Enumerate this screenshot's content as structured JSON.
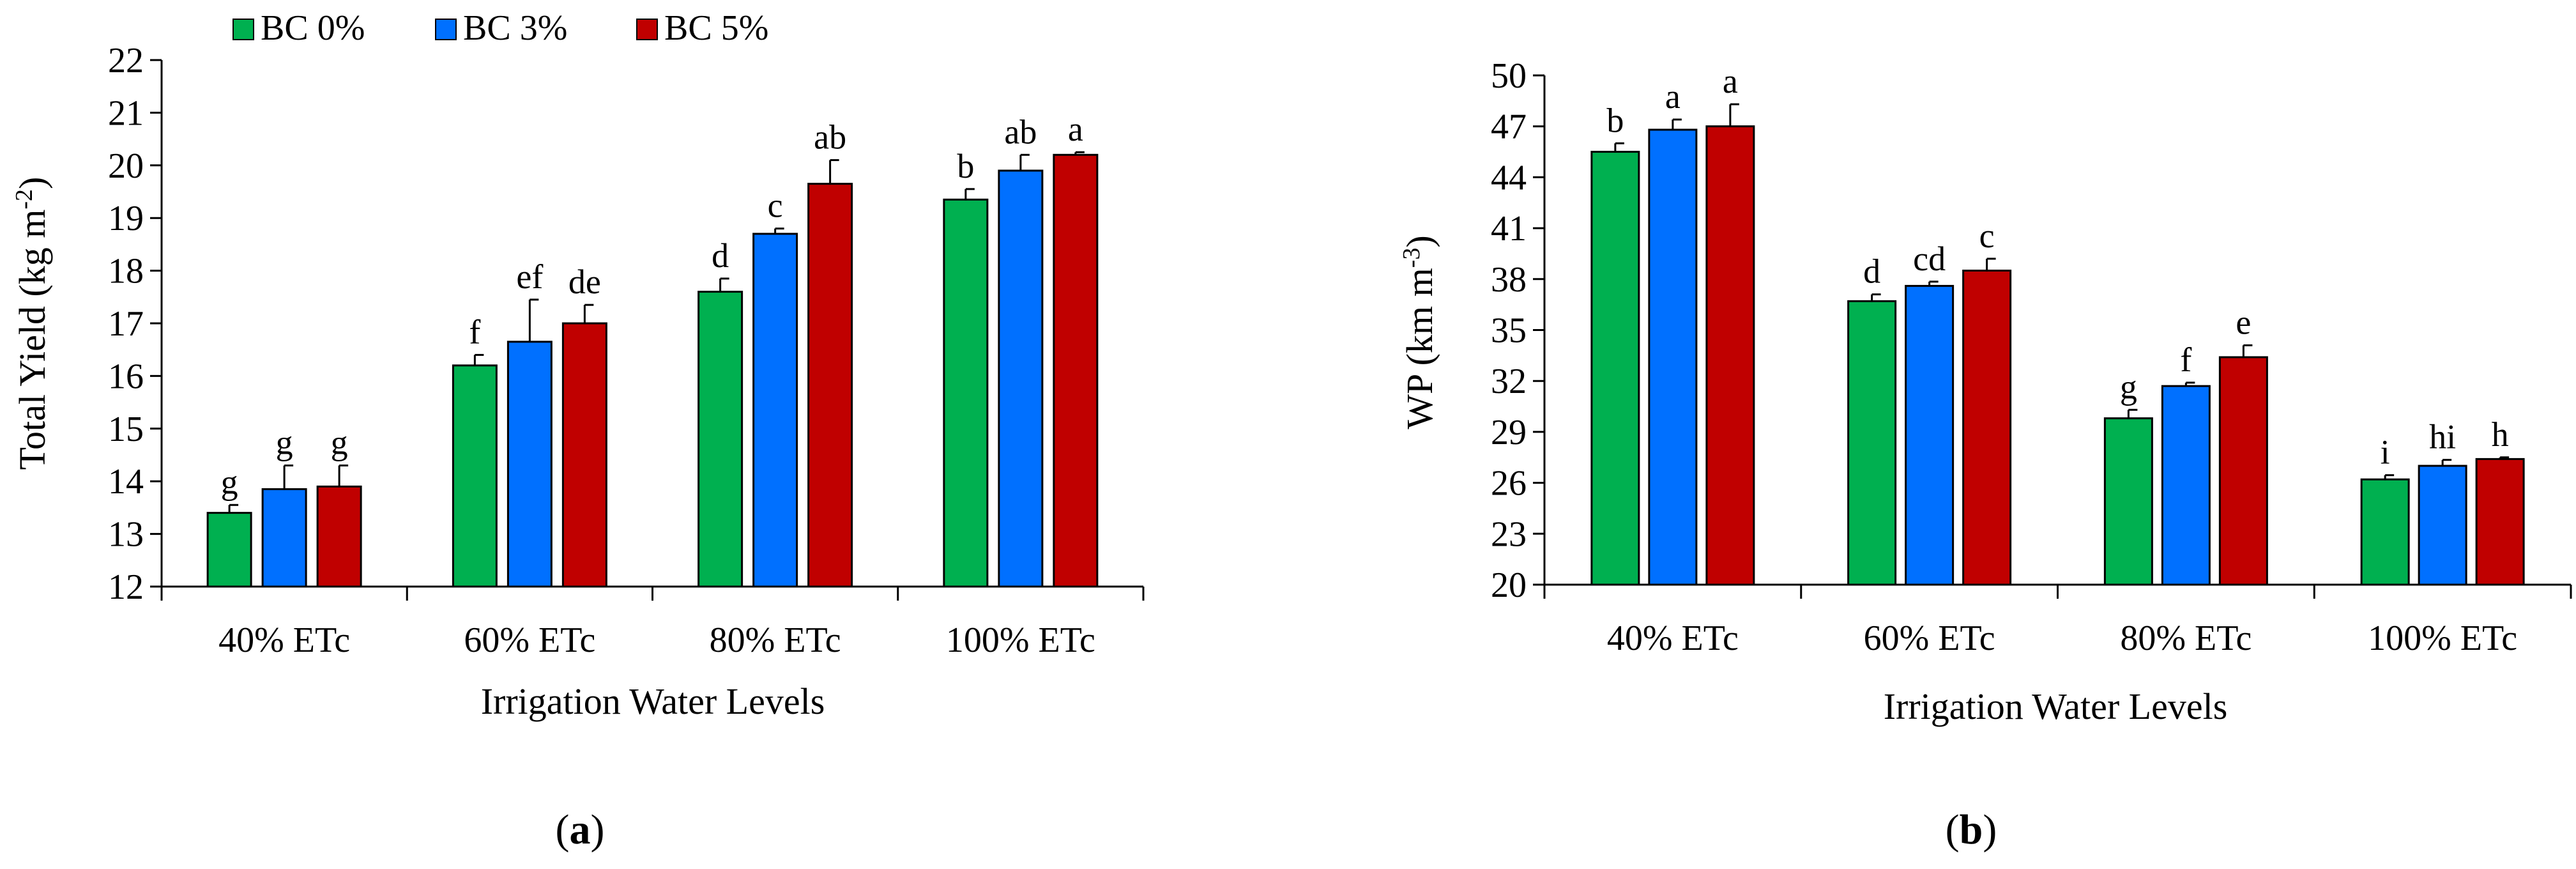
{
  "legend": {
    "items": [
      {
        "label": "BC 0%",
        "color": "#00b050"
      },
      {
        "label": "BC 3%",
        "color": "#0070ff"
      },
      {
        "label": "BC 5%",
        "color": "#c00000"
      }
    ]
  },
  "panels": {
    "a": {
      "caption_open": "(",
      "caption_letter": "a",
      "caption_close": ")"
    },
    "b": {
      "caption_open": "(",
      "caption_letter": "b",
      "caption_close": ")"
    }
  },
  "chart_data": [
    {
      "type": "bar",
      "xlabel": "Irrigation Water Levels",
      "ylabel_main": "Total Yield (kg m",
      "ylabel_sup": "-2",
      "ylabel_tail": ")",
      "ylim": [
        12,
        22
      ],
      "yticks": [
        12,
        13,
        14,
        15,
        16,
        17,
        18,
        19,
        20,
        21,
        22
      ],
      "grid": false,
      "legend_position": "top",
      "categories": [
        "40% ETc",
        "60% ETc",
        "80% ETc",
        "100% ETc"
      ],
      "series": [
        {
          "name": "BC 0%",
          "color": "#00b050",
          "values": [
            13.4,
            16.2,
            17.6,
            19.35
          ],
          "errors": [
            0.15,
            0.2,
            0.25,
            0.2
          ],
          "labels": [
            "g",
            "f",
            "d",
            "b"
          ]
        },
        {
          "name": "BC 3%",
          "color": "#0070ff",
          "values": [
            13.85,
            16.65,
            18.7,
            19.9
          ],
          "errors": [
            0.45,
            0.8,
            0.1,
            0.3
          ],
          "labels": [
            "g",
            "ef",
            "c",
            "ab"
          ]
        },
        {
          "name": "BC 5%",
          "color": "#c00000",
          "values": [
            13.9,
            17.0,
            19.65,
            20.2
          ],
          "errors": [
            0.4,
            0.35,
            0.45,
            0.05
          ],
          "labels": [
            "g",
            "de",
            "ab",
            "a"
          ]
        }
      ]
    },
    {
      "type": "bar",
      "xlabel": "Irrigation Water Levels",
      "ylabel_main": "WP (km m",
      "ylabel_sup": "-3",
      "ylabel_tail": ")",
      "ylim": [
        20,
        50
      ],
      "yticks": [
        20,
        23,
        26,
        29,
        32,
        35,
        38,
        41,
        44,
        47,
        50
      ],
      "grid": false,
      "categories": [
        "40% ETc",
        "60% ETc",
        "80% ETc",
        "100% ETc"
      ],
      "series": [
        {
          "name": "BC 0%",
          "color": "#00b050",
          "values": [
            45.5,
            36.7,
            29.8,
            26.2
          ],
          "errors": [
            0.5,
            0.4,
            0.5,
            0.25
          ],
          "labels": [
            "b",
            "d",
            "g",
            "i"
          ]
        },
        {
          "name": "BC 3%",
          "color": "#0070ff",
          "values": [
            46.8,
            37.6,
            31.7,
            27.0
          ],
          "errors": [
            0.6,
            0.25,
            0.2,
            0.35
          ],
          "labels": [
            "a",
            "cd",
            "f",
            "hi"
          ]
        },
        {
          "name": "BC 5%",
          "color": "#c00000",
          "values": [
            47.0,
            38.5,
            33.4,
            27.4
          ],
          "errors": [
            1.3,
            0.7,
            0.7,
            0.1
          ],
          "labels": [
            "a",
            "c",
            "e",
            "h"
          ]
        }
      ]
    }
  ]
}
